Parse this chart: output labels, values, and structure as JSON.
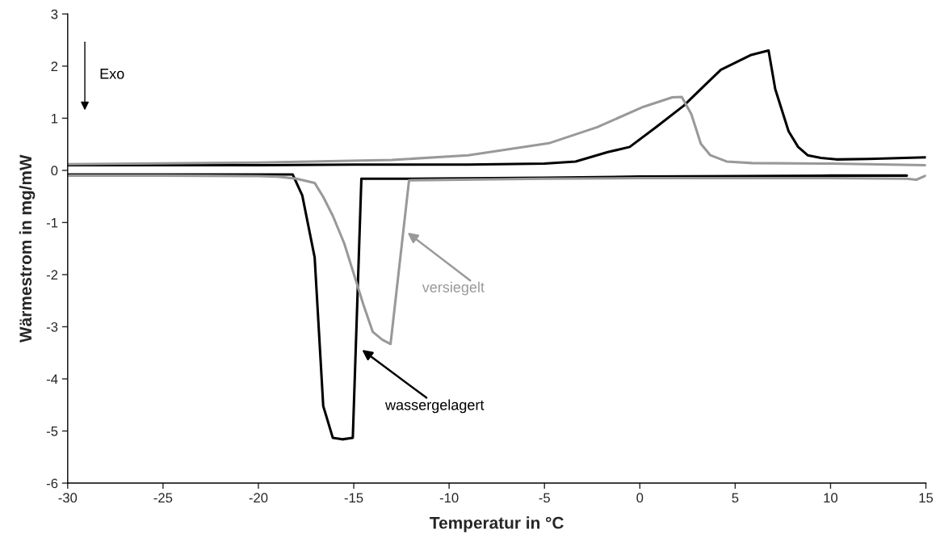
{
  "chart_data": {
    "type": "line",
    "xlabel": "Temperatur in °C",
    "ylabel": "Wärmestrom in mg/mW",
    "xlim": [
      -30,
      15
    ],
    "xticks": [
      -30,
      -25,
      -20,
      -15,
      -10,
      -5,
      0,
      5,
      10,
      15
    ],
    "ylim": [
      -6,
      3
    ],
    "yticks": [
      -6,
      -5,
      -4,
      -3,
      -2,
      -1,
      0,
      1,
      2,
      3
    ],
    "grid": false,
    "marker": "none",
    "line_style": "solid",
    "series": [
      {
        "color": "#000000",
        "x": [
          -30,
          -25,
          -20,
          -19,
          -18.2,
          -17.7,
          -17.05,
          -16.6,
          -16.1,
          -15.6,
          -15.05,
          -14.6,
          -12,
          -5,
          0,
          5,
          10,
          14
        ],
        "values": [
          -0.08,
          -0.08,
          -0.08,
          -0.08,
          -0.08,
          -0.48,
          -1.67,
          -4.52,
          -5.13,
          -5.16,
          -5.13,
          -0.16,
          -0.16,
          -0.14,
          -0.12,
          -0.11,
          -0.1,
          -0.1
        ]
      },
      {
        "color": "#999999",
        "x": [
          -30,
          -25,
          -20,
          -19,
          -18,
          -17.05,
          -16.6,
          -16.1,
          -15.5,
          -14.9,
          -14.5,
          -14.0,
          -13.5,
          -13.07,
          -12.1,
          -5,
          0,
          5,
          10,
          14,
          14.5,
          15
        ],
        "values": [
          -0.1,
          -0.1,
          -0.11,
          -0.12,
          -0.16,
          -0.24,
          -0.51,
          -0.87,
          -1.4,
          -2.1,
          -2.57,
          -3.1,
          -3.25,
          -3.33,
          -0.19,
          -0.16,
          -0.15,
          -0.15,
          -0.15,
          -0.16,
          -0.18,
          -0.1
        ]
      },
      {
        "color": "#000000",
        "x": [
          -30,
          -20,
          -15,
          -9,
          -5,
          -3.37,
          -1.68,
          -0.53,
          0.86,
          2.3,
          3.4,
          4.25,
          5.8,
          6.75,
          7.1,
          7.8,
          8.3,
          8.8,
          9.5,
          10.3,
          12,
          15
        ],
        "values": [
          0.1,
          0.1,
          0.11,
          0.11,
          0.13,
          0.17,
          0.35,
          0.45,
          0.83,
          1.24,
          1.63,
          1.93,
          2.21,
          2.3,
          1.56,
          0.75,
          0.45,
          0.29,
          0.24,
          0.21,
          0.22,
          0.25
        ]
      },
      {
        "color": "#999999",
        "x": [
          -30,
          -20,
          -13,
          -9,
          -4.77,
          -2.23,
          0.19,
          1.7,
          2.2,
          2.7,
          3.2,
          3.7,
          4.55,
          5.9,
          10,
          15
        ],
        "values": [
          0.12,
          0.15,
          0.2,
          0.29,
          0.52,
          0.83,
          1.22,
          1.4,
          1.41,
          1.08,
          0.51,
          0.29,
          0.17,
          0.14,
          0.13,
          0.1
        ]
      }
    ],
    "annotations": [
      "Exo",
      "versiegelt",
      "wassergelagert"
    ]
  }
}
